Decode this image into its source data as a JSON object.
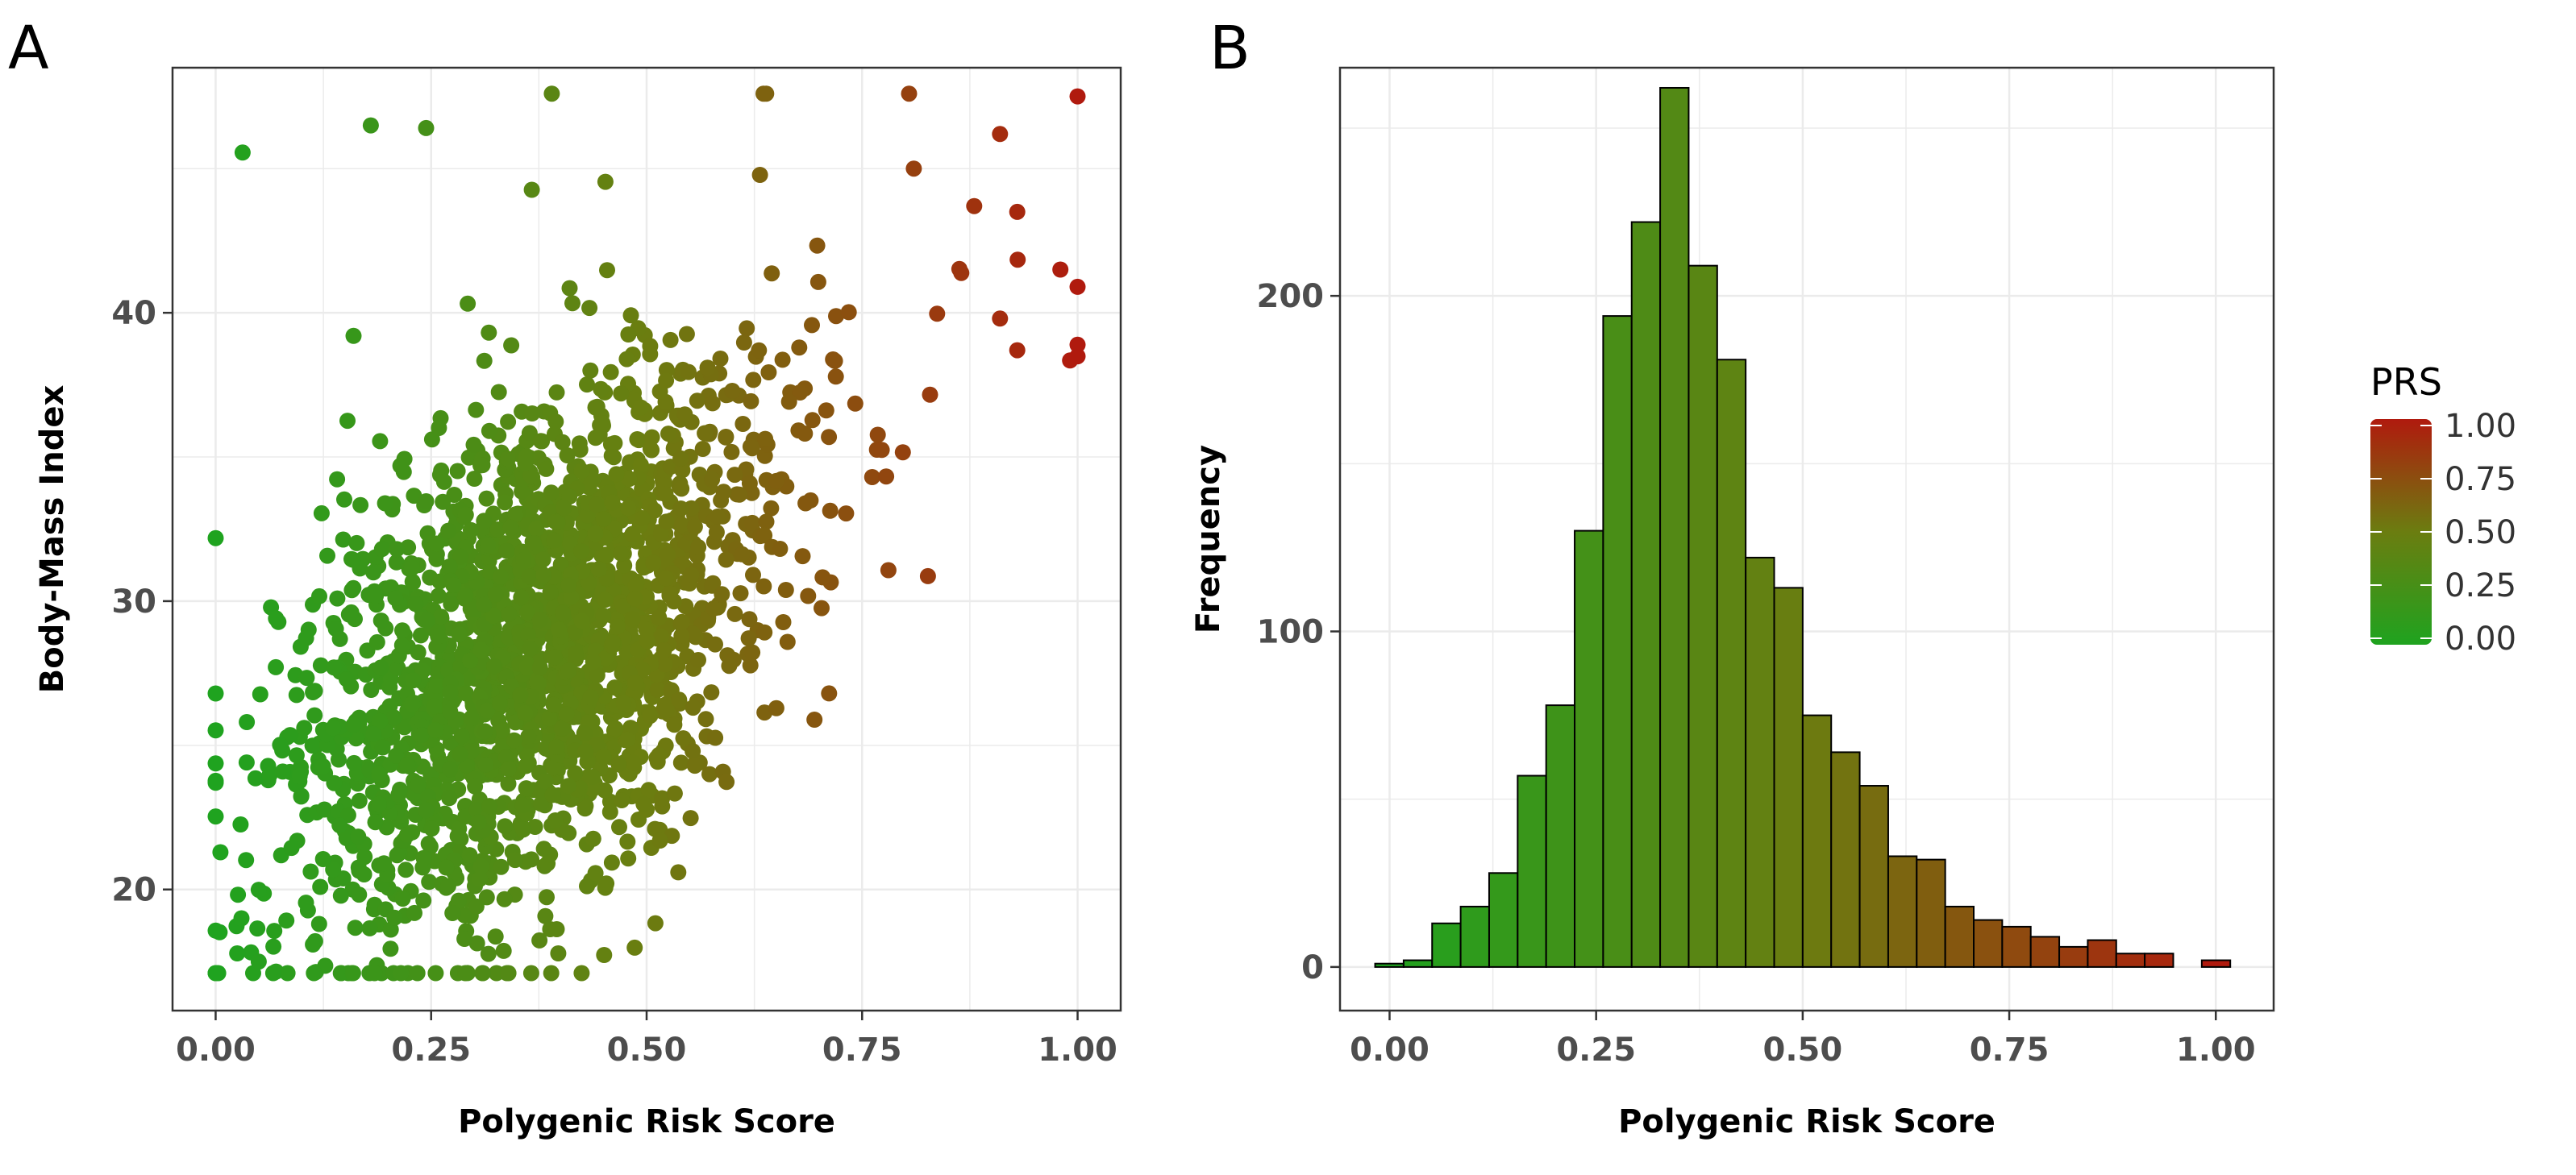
{
  "colors": {
    "low": "#1fa31f",
    "mid": "#6b7d10",
    "high": "#b01a0e",
    "grid": "#ebebeb",
    "panel_border": "#333333",
    "bar_edge": "#000000"
  },
  "chart_data": [
    {
      "panel": "A",
      "type": "scatter",
      "xlabel": "Polygenic Risk Score",
      "ylabel": "Body-Mass Index",
      "xlim": [
        -0.05,
        1.05
      ],
      "ylim": [
        15.8,
        48.5
      ],
      "xticks": [
        0,
        0.25,
        0.5,
        0.75,
        1
      ],
      "xtick_labels": [
        "0.00",
        "0.25",
        "0.50",
        "0.75",
        "1.00"
      ],
      "yticks": [
        20,
        30,
        40
      ],
      "ytick_labels": [
        "20",
        "30",
        "40"
      ],
      "color_by": "x",
      "n_points": 2000,
      "trend": {
        "intercept": 21.5,
        "slope": 17.5,
        "residual_sd": 4.2
      },
      "notable_points": [
        {
          "x": 0.0,
          "y": 23.7
        },
        {
          "x": 0.05,
          "y": 17.5
        },
        {
          "x": 0.18,
          "y": 46.5
        },
        {
          "x": 0.39,
          "y": 47.6
        },
        {
          "x": 0.31,
          "y": 17.1
        },
        {
          "x": 0.98,
          "y": 41.5
        },
        {
          "x": 1.0,
          "y": 40.9
        },
        {
          "x": 0.91,
          "y": 46.2
        },
        {
          "x": 0.81,
          "y": 45.0
        },
        {
          "x": 0.93,
          "y": 43.5
        },
        {
          "x": 0.88,
          "y": 43.7
        },
        {
          "x": 0.16,
          "y": 39.2
        },
        {
          "x": 0.07,
          "y": 29.4
        },
        {
          "x": 0.03,
          "y": 19.0
        },
        {
          "x": 0.93,
          "y": 38.7
        },
        {
          "x": 0.91,
          "y": 39.8
        }
      ]
    },
    {
      "panel": "B",
      "type": "bar",
      "subtype": "histogram",
      "xlabel": "Polygenic Risk Score",
      "ylabel": "Frequency",
      "xlim": [
        -0.06,
        1.07
      ],
      "ylim": [
        -13,
        268
      ],
      "xticks": [
        0,
        0.25,
        0.5,
        0.75,
        1
      ],
      "xtick_labels": [
        "0.00",
        "0.25",
        "0.50",
        "0.75",
        "1.00"
      ],
      "yticks": [
        0,
        100,
        200
      ],
      "ytick_labels": [
        "0",
        "100",
        "200"
      ],
      "bin_start": -0.0175,
      "bin_width": 0.0345,
      "values": [
        1,
        2,
        13,
        18,
        28,
        57,
        78,
        130,
        194,
        222,
        262,
        209,
        181,
        122,
        113,
        75,
        64,
        54,
        33,
        32,
        18,
        14,
        12,
        9,
        6,
        8,
        4,
        4,
        0,
        2
      ]
    }
  ],
  "legend": {
    "title": "PRS",
    "labels": [
      "1.00",
      "0.75",
      "0.50",
      "0.25",
      "0.00"
    ],
    "values": [
      1,
      0.75,
      0.5,
      0.25,
      0
    ]
  }
}
